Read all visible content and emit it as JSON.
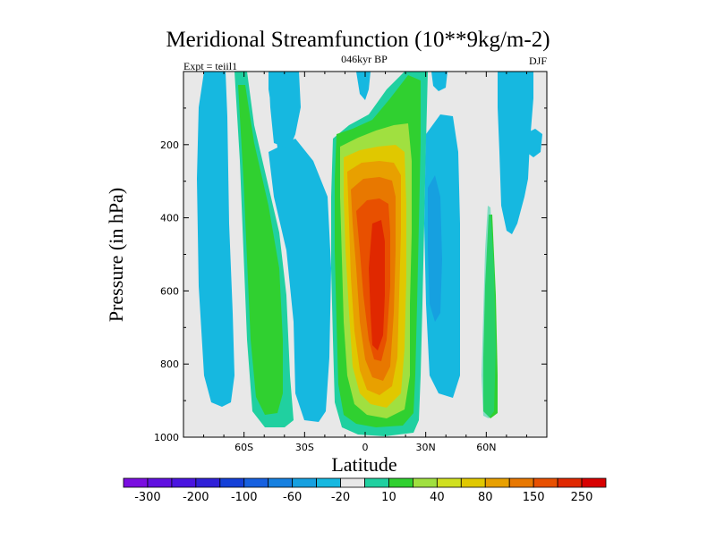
{
  "chart_data": {
    "type": "contour",
    "title": "Meridional Streamfunction (10**9kg/m-2)",
    "subtitle_left": "Expt = teiil1",
    "subtitle_center": "046kyr BP",
    "subtitle_right": "DJF",
    "xlabel": "Latitude",
    "ylabel": "Pressure (in hPa)",
    "xlim": [
      -90,
      90
    ],
    "ylim": [
      1000,
      0
    ],
    "x_ticks": [
      {
        "value": -60,
        "label": "60S"
      },
      {
        "value": -30,
        "label": "30S"
      },
      {
        "value": 0,
        "label": "0"
      },
      {
        "value": 30,
        "label": "30N"
      },
      {
        "value": 60,
        "label": "60N"
      }
    ],
    "y_ticks": [
      {
        "value": 200,
        "label": "200"
      },
      {
        "value": 400,
        "label": "400"
      },
      {
        "value": 600,
        "label": "600"
      },
      {
        "value": 800,
        "label": "800"
      },
      {
        "value": 1000,
        "label": "1000"
      }
    ],
    "background_color": "#e8e8e8",
    "colorbar": {
      "colors": [
        "#7a0ee0",
        "#6010e0",
        "#4a14e0",
        "#3020d8",
        "#1440d8",
        "#1660e0",
        "#1680e0",
        "#16a0e0",
        "#16b8e0",
        "#e8e8e8",
        "#20d0a0",
        "#30d030",
        "#a0e040",
        "#d0e020",
        "#e0c800",
        "#e8a000",
        "#e87800",
        "#e85000",
        "#e02800",
        "#d80000"
      ],
      "tick_labels": [
        "-300",
        "-200",
        "-100",
        "-60",
        "-20",
        "10",
        "40",
        "80",
        "150",
        "250"
      ]
    },
    "features": [
      {
        "kind": "negative cell",
        "lat_range": [
          -80,
          -70
        ],
        "p_range": [
          0,
          950
        ],
        "level": "-20"
      },
      {
        "kind": "positive cell",
        "lat_range": [
          -62,
          -50
        ],
        "p_range": [
          0,
          980
        ],
        "level": "40"
      },
      {
        "kind": "negative cell",
        "lat_range": [
          -40,
          -25
        ],
        "p_range": [
          0,
          970
        ],
        "level": "-20"
      },
      {
        "kind": "positive cell",
        "lat_range": [
          -13,
          30
        ],
        "p_range": [
          0,
          990
        ],
        "max_level": "250",
        "center": [
          8,
          600
        ]
      },
      {
        "kind": "negative cell",
        "lat_range": [
          30,
          45
        ],
        "p_range": [
          120,
          900
        ],
        "level": "-60"
      },
      {
        "kind": "positive cell",
        "lat_range": [
          60,
          64
        ],
        "p_range": [
          380,
          950
        ],
        "level": "40"
      },
      {
        "kind": "negative cell",
        "lat_range": [
          68,
          84
        ],
        "p_range": [
          0,
          430
        ],
        "level": "-20"
      }
    ]
  }
}
